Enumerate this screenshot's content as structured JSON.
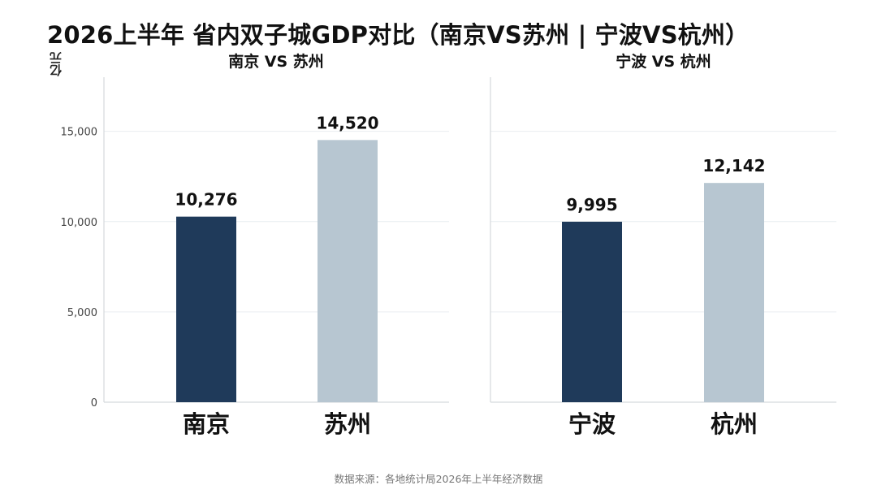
{
  "title": "2026上半年 省内双子城GDP对比（南京VS苏州 | 宁波VS杭州）",
  "y_unit": "亿元",
  "source": "数据来源：各地统计局2026年上半年经济数据",
  "colors": {
    "primary": "#1f3a5a",
    "secondary": "#b7c6d1",
    "grid": "#e9edf0",
    "axis": "#d5d9dd"
  },
  "chart_data": [
    {
      "type": "bar",
      "title": "南京 VS 苏州",
      "categories": [
        "南京",
        "苏州"
      ],
      "values": [
        10276,
        14520
      ],
      "value_labels": [
        "10,276",
        "14,520"
      ],
      "ylim": [
        0,
        18000
      ],
      "yticks": [
        0,
        5000,
        10000,
        15000
      ],
      "ytick_labels": [
        "0",
        "5,000",
        "10,000",
        "15,000"
      ],
      "grid": true
    },
    {
      "type": "bar",
      "title": "宁波 VS 杭州",
      "categories": [
        "宁波",
        "杭州"
      ],
      "values": [
        9995,
        12142
      ],
      "value_labels": [
        "9,995",
        "12,142"
      ],
      "ylim": [
        0,
        18000
      ],
      "grid": true
    }
  ]
}
